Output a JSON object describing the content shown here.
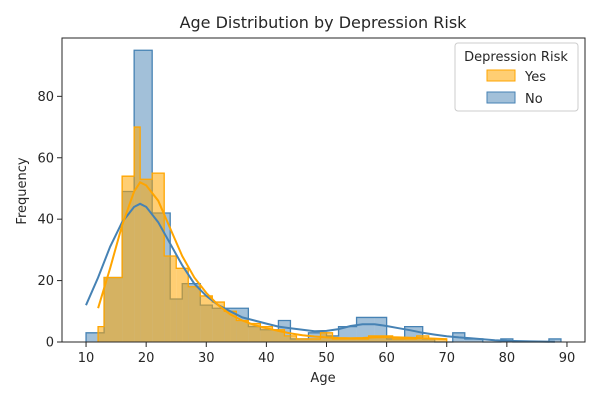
{
  "chart_data": {
    "type": "histogram",
    "title": "Age Distribution by Depression Risk",
    "xlabel": "Age",
    "ylabel": "Frequency",
    "xlim": [
      6,
      93
    ],
    "ylim": [
      0,
      99
    ],
    "xticks": [
      10,
      20,
      30,
      40,
      50,
      60,
      70,
      80,
      90
    ],
    "yticks": [
      0,
      20,
      40,
      60,
      80
    ],
    "grid": false,
    "legend": {
      "title": "Depression Risk",
      "position": "top-right"
    },
    "series": [
      {
        "name": "No",
        "color": "#4682b4",
        "bins": [
          [
            10,
            13,
            3
          ],
          [
            13,
            16,
            21
          ],
          [
            16,
            18,
            49
          ],
          [
            18,
            21,
            95
          ],
          [
            21,
            24,
            42
          ],
          [
            24,
            26,
            14
          ],
          [
            26,
            29,
            19
          ],
          [
            29,
            31,
            12
          ],
          [
            31,
            34,
            11
          ],
          [
            34,
            37,
            11
          ],
          [
            37,
            39,
            5
          ],
          [
            39,
            42,
            4
          ],
          [
            42,
            44,
            7
          ],
          [
            44,
            47,
            1
          ],
          [
            47,
            50,
            3
          ],
          [
            50,
            52,
            2
          ],
          [
            52,
            55,
            5
          ],
          [
            55,
            58,
            8
          ],
          [
            58,
            60,
            8
          ],
          [
            60,
            63,
            1
          ],
          [
            63,
            66,
            5
          ],
          [
            66,
            68,
            1
          ],
          [
            68,
            71,
            0
          ],
          [
            71,
            73,
            3
          ],
          [
            73,
            76,
            1
          ],
          [
            76,
            79,
            0
          ],
          [
            79,
            81,
            1
          ],
          [
            81,
            84,
            0
          ],
          [
            84,
            87,
            0
          ],
          [
            87,
            89,
            1
          ]
        ],
        "kde": [
          [
            10,
            12
          ],
          [
            12,
            21
          ],
          [
            14,
            31
          ],
          [
            16,
            39
          ],
          [
            18,
            44
          ],
          [
            19,
            45
          ],
          [
            20,
            44
          ],
          [
            22,
            39
          ],
          [
            24,
            32
          ],
          [
            26,
            25
          ],
          [
            28,
            19
          ],
          [
            30,
            15
          ],
          [
            32,
            12
          ],
          [
            34,
            10
          ],
          [
            36,
            8
          ],
          [
            38,
            7
          ],
          [
            40,
            6
          ],
          [
            42,
            5
          ],
          [
            44,
            4.5
          ],
          [
            46,
            4
          ],
          [
            48,
            3.5
          ],
          [
            50,
            3.6
          ],
          [
            52,
            4.2
          ],
          [
            54,
            5.2
          ],
          [
            56,
            5.8
          ],
          [
            58,
            5.8
          ],
          [
            60,
            5.2
          ],
          [
            62,
            4.5
          ],
          [
            64,
            3.8
          ],
          [
            66,
            3
          ],
          [
            68,
            2.4
          ],
          [
            70,
            1.9
          ],
          [
            72,
            1.5
          ],
          [
            74,
            1.2
          ],
          [
            76,
            0.9
          ],
          [
            78,
            0.6
          ],
          [
            80,
            0.4
          ],
          [
            84,
            0.2
          ],
          [
            88,
            0.1
          ]
        ]
      },
      {
        "name": "Yes",
        "color": "#ffa500",
        "bins": [
          [
            12,
            13,
            5
          ],
          [
            13,
            16,
            21
          ],
          [
            16,
            18,
            54
          ],
          [
            18,
            19,
            70
          ],
          [
            19,
            21,
            53
          ],
          [
            21,
            23,
            55
          ],
          [
            23,
            25,
            28
          ],
          [
            25,
            27,
            24
          ],
          [
            27,
            29,
            18
          ],
          [
            29,
            31,
            15
          ],
          [
            31,
            33,
            13
          ],
          [
            33,
            35,
            10
          ],
          [
            35,
            37,
            7
          ],
          [
            37,
            39,
            6
          ],
          [
            39,
            41,
            5
          ],
          [
            41,
            43,
            4
          ],
          [
            43,
            45,
            2
          ],
          [
            45,
            47,
            1
          ],
          [
            47,
            49,
            1
          ],
          [
            49,
            51,
            3
          ],
          [
            51,
            53,
            1
          ],
          [
            53,
            55,
            1
          ],
          [
            55,
            57,
            1
          ],
          [
            57,
            59,
            2
          ],
          [
            59,
            61,
            2
          ],
          [
            61,
            63,
            1
          ],
          [
            63,
            65,
            1
          ],
          [
            65,
            67,
            2
          ],
          [
            67,
            70,
            1
          ]
        ],
        "kde": [
          [
            12,
            11
          ],
          [
            14,
            24
          ],
          [
            16,
            38
          ],
          [
            18,
            49
          ],
          [
            19,
            52
          ],
          [
            20,
            51
          ],
          [
            22,
            46
          ],
          [
            24,
            37
          ],
          [
            26,
            28
          ],
          [
            28,
            21
          ],
          [
            30,
            16
          ],
          [
            32,
            12
          ],
          [
            34,
            9
          ],
          [
            36,
            7
          ],
          [
            38,
            5.5
          ],
          [
            40,
            4.5
          ],
          [
            42,
            3.6
          ],
          [
            44,
            2.8
          ],
          [
            46,
            2.2
          ],
          [
            48,
            1.8
          ],
          [
            50,
            1.5
          ],
          [
            52,
            1.3
          ],
          [
            54,
            1.2
          ],
          [
            56,
            1.3
          ],
          [
            58,
            1.5
          ],
          [
            60,
            1.6
          ],
          [
            62,
            1.5
          ],
          [
            64,
            1.4
          ],
          [
            66,
            1.2
          ],
          [
            68,
            1.1
          ],
          [
            70,
            0.9
          ]
        ]
      }
    ]
  }
}
